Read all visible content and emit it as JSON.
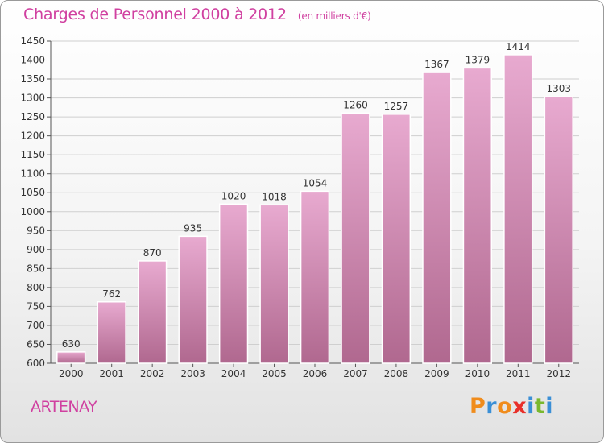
{
  "header": {
    "title": "Charges de Personnel 2000 à 2012",
    "unit": "(en milliers d'€)"
  },
  "footer": {
    "place": "ARTENAY",
    "logo": [
      "P",
      "r",
      "o",
      "x",
      "i",
      "t",
      "i"
    ]
  },
  "colors": {
    "title": "#d040a0",
    "bar_top": "#e8aad0",
    "bar_bottom": "#b0688f",
    "logo": [
      "#f08c1c",
      "#3a8fd6",
      "#f08c1c",
      "#e8302a",
      "#3a8fd6",
      "#7ab82e",
      "#3a8fd6"
    ]
  },
  "chart_data": {
    "type": "bar",
    "categories": [
      "2000",
      "2001",
      "2002",
      "2003",
      "2004",
      "2005",
      "2006",
      "2007",
      "2008",
      "2009",
      "2010",
      "2011",
      "2012"
    ],
    "values": [
      630,
      762,
      870,
      935,
      1020,
      1018,
      1054,
      1260,
      1257,
      1367,
      1379,
      1414,
      1303
    ],
    "ylim": [
      600,
      1450
    ],
    "yticks": [
      600,
      650,
      700,
      750,
      800,
      850,
      900,
      950,
      1000,
      1050,
      1100,
      1150,
      1200,
      1250,
      1300,
      1350,
      1400,
      1450
    ],
    "grid": true
  }
}
